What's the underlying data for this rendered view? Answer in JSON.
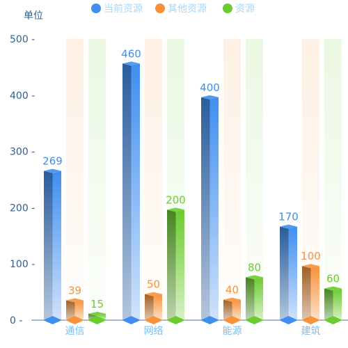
{
  "chart_data": {
    "type": "bar",
    "title": "",
    "xlabel": "",
    "ylabel": "单位",
    "ylim": [
      0,
      500
    ],
    "yticks": [
      0,
      100,
      200,
      300,
      400,
      500
    ],
    "grid": false,
    "legend_position": "top-center",
    "categories": [
      "通信",
      "网络",
      "能源",
      "建筑"
    ],
    "series": [
      {
        "name": "当前资源",
        "values": [
          269,
          460,
          400,
          170
        ],
        "color": "#3f8ef0",
        "label_color": "#3f8ef0"
      },
      {
        "name": "其他资源",
        "values": [
          39,
          50,
          40,
          100
        ],
        "color": "#f7923a",
        "label_color": "#f7923a"
      },
      {
        "name": "资源",
        "values": [
          15,
          200,
          80,
          60
        ],
        "color": "#6ccb2f",
        "label_color": "#6ccb2f"
      }
    ]
  }
}
